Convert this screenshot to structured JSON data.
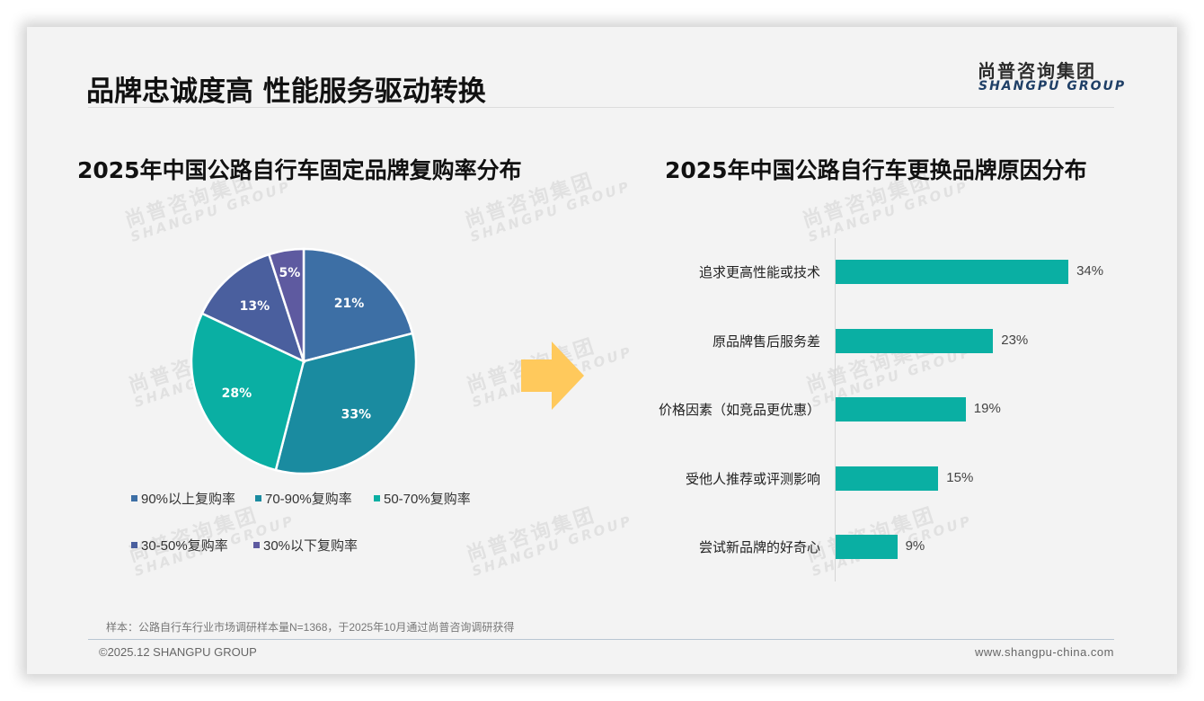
{
  "header": {
    "title": "品牌忠诚度高 性能服务驱动转换",
    "logo_cn": "尚普咨询集团",
    "logo_en": "SHANGPU GROUP"
  },
  "watermark": {
    "cn": "尚普咨询集团",
    "en": "SHANGPU GROUP"
  },
  "arrow": {
    "icon": "right-arrow-icon",
    "color": "#FFC95C"
  },
  "chart_data": [
    {
      "type": "pie",
      "title": "2025年中国公路自行车固定品牌复购率分布",
      "categories": [
        "90%以上复购率",
        "70-90%复购率",
        "50-70%复购率",
        "30-50%复购率",
        "30%以下复购率"
      ],
      "values": [
        21,
        33,
        28,
        13,
        5
      ],
      "labels": [
        "21%",
        "33%",
        "28%",
        "13%",
        "5%"
      ],
      "colors": [
        "#3D6FA5",
        "#1A8BA0",
        "#0AAFA3",
        "#4A5F9E",
        "#5E5AA0"
      ],
      "start_angle": "12 o'clock, clockwise",
      "legend_position": "bottom"
    },
    {
      "type": "bar",
      "orientation": "horizontal",
      "title": "2025年中国公路自行车更换品牌原因分布",
      "categories": [
        "追求更高性能或技术",
        "原品牌售后服务差",
        "价格因素（如竞品更优惠）",
        "受他人推荐或评测影响",
        "尝试新品牌的好奇心"
      ],
      "values": [
        34,
        23,
        19,
        15,
        9
      ],
      "labels": [
        "34%",
        "23%",
        "19%",
        "15%",
        "9%"
      ],
      "color": "#0AAFA3",
      "xlabel": "",
      "ylabel": "",
      "grid": false
    }
  ],
  "pie": {
    "title": "2025年中国公路自行车固定品牌复购率分布",
    "slices": [
      {
        "label": "21%",
        "value": 21,
        "color": "#3D6FA5",
        "legend": "90%以上复购率"
      },
      {
        "label": "33%",
        "value": 33,
        "color": "#1A8BA0",
        "legend": "70-90%复购率"
      },
      {
        "label": "28%",
        "value": 28,
        "color": "#0AAFA3",
        "legend": "50-70%复购率"
      },
      {
        "label": "13%",
        "value": 13,
        "color": "#4A5F9E",
        "legend": "30-50%复购率"
      },
      {
        "label": "5%",
        "value": 5,
        "color": "#5E5AA0",
        "legend": "30%以下复购率"
      }
    ]
  },
  "bars": {
    "title": "2025年中国公路自行车更换品牌原因分布",
    "items": [
      {
        "label": "追求更高性能或技术",
        "value": 34,
        "text": "34%"
      },
      {
        "label": "原品牌售后服务差",
        "value": 23,
        "text": "23%"
      },
      {
        "label": "价格因素（如竞品更优惠）",
        "value": 19,
        "text": "19%"
      },
      {
        "label": "受他人推荐或评测影响",
        "value": 15,
        "text": "15%"
      },
      {
        "label": "尝试新品牌的好奇心",
        "value": 9,
        "text": "9%"
      }
    ]
  },
  "footer": {
    "note": "样本：公路自行车行业市场调研样本量N=1368，于2025年10月通过尚普咨询调研获得",
    "copyright": "©2025.12 SHANGPU GROUP",
    "website": "www.shangpu-china.com"
  }
}
